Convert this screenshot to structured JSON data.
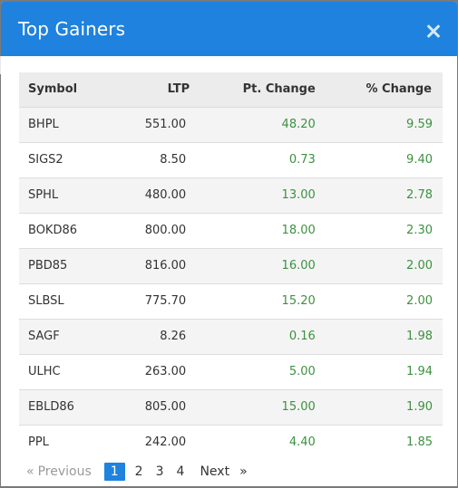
{
  "modal": {
    "title": "Top Gainers",
    "close_icon": "close-icon"
  },
  "table": {
    "headers": [
      "Symbol",
      "LTP",
      "Pt. Change",
      "% Change"
    ],
    "rows": [
      {
        "symbol": "BHPL",
        "ltp": "551.00",
        "pt_change": "48.20",
        "pct_change": "9.59"
      },
      {
        "symbol": "SIGS2",
        "ltp": "8.50",
        "pt_change": "0.73",
        "pct_change": "9.40"
      },
      {
        "symbol": "SPHL",
        "ltp": "480.00",
        "pt_change": "13.00",
        "pct_change": "2.78"
      },
      {
        "symbol": "BOKD86",
        "ltp": "800.00",
        "pt_change": "18.00",
        "pct_change": "2.30"
      },
      {
        "symbol": "PBD85",
        "ltp": "816.00",
        "pt_change": "16.00",
        "pct_change": "2.00"
      },
      {
        "symbol": "SLBSL",
        "ltp": "775.70",
        "pt_change": "15.20",
        "pct_change": "2.00"
      },
      {
        "symbol": "SAGF",
        "ltp": "8.26",
        "pt_change": "0.16",
        "pct_change": "1.98"
      },
      {
        "symbol": "ULHC",
        "ltp": "263.00",
        "pt_change": "5.00",
        "pct_change": "1.94"
      },
      {
        "symbol": "EBLD86",
        "ltp": "805.00",
        "pt_change": "15.00",
        "pct_change": "1.90"
      },
      {
        "symbol": "PPL",
        "ltp": "242.00",
        "pt_change": "4.40",
        "pct_change": "1.85"
      }
    ]
  },
  "pagination": {
    "prev_arrow": "«",
    "prev_label": "Previous",
    "pages": [
      "1",
      "2",
      "3",
      "4"
    ],
    "current": "1",
    "next_label": "Next",
    "next_arrow": "»"
  },
  "colors": {
    "header_bg": "#1e82de",
    "gain_text": "#3d9140",
    "active_page": "#1e82de"
  }
}
